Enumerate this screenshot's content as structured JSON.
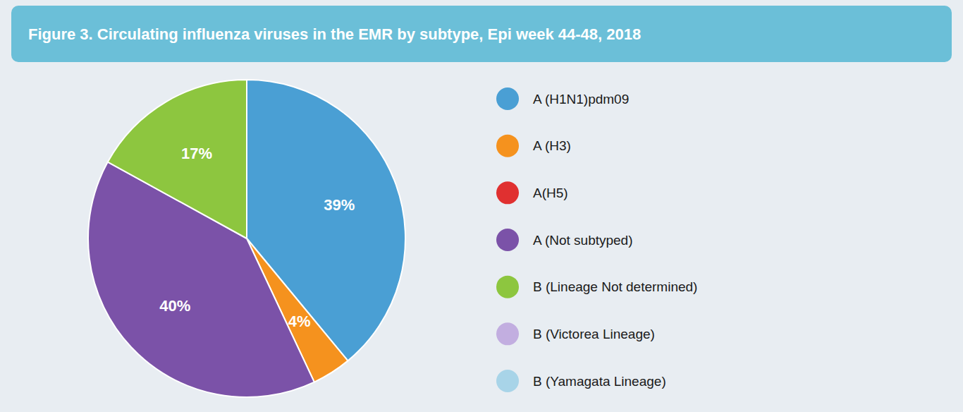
{
  "chart_data": {
    "type": "pie",
    "title": "Figure 3. Circulating influenza viruses in the EMR by subtype, Epi week 44-48, 2018",
    "categories": [
      "A (H1N1)pdm09",
      "A (H3)",
      "A(H5)",
      "A (Not subtyped)",
      "B (Lineage Not determined)",
      "B (Victorea Lineage)",
      "B (Yamagata Lineage)"
    ],
    "values": [
      39,
      4,
      null,
      40,
      17,
      null,
      null
    ],
    "value_labels": [
      "39%",
      "4%",
      null,
      "40%",
      "17%",
      null,
      null
    ],
    "colors": [
      "#4a9fd4",
      "#f5921e",
      "#e03030",
      "#7b52a8",
      "#8dc63f",
      "#c2aee0",
      "#a8d4e8"
    ],
    "data_labels": true
  }
}
